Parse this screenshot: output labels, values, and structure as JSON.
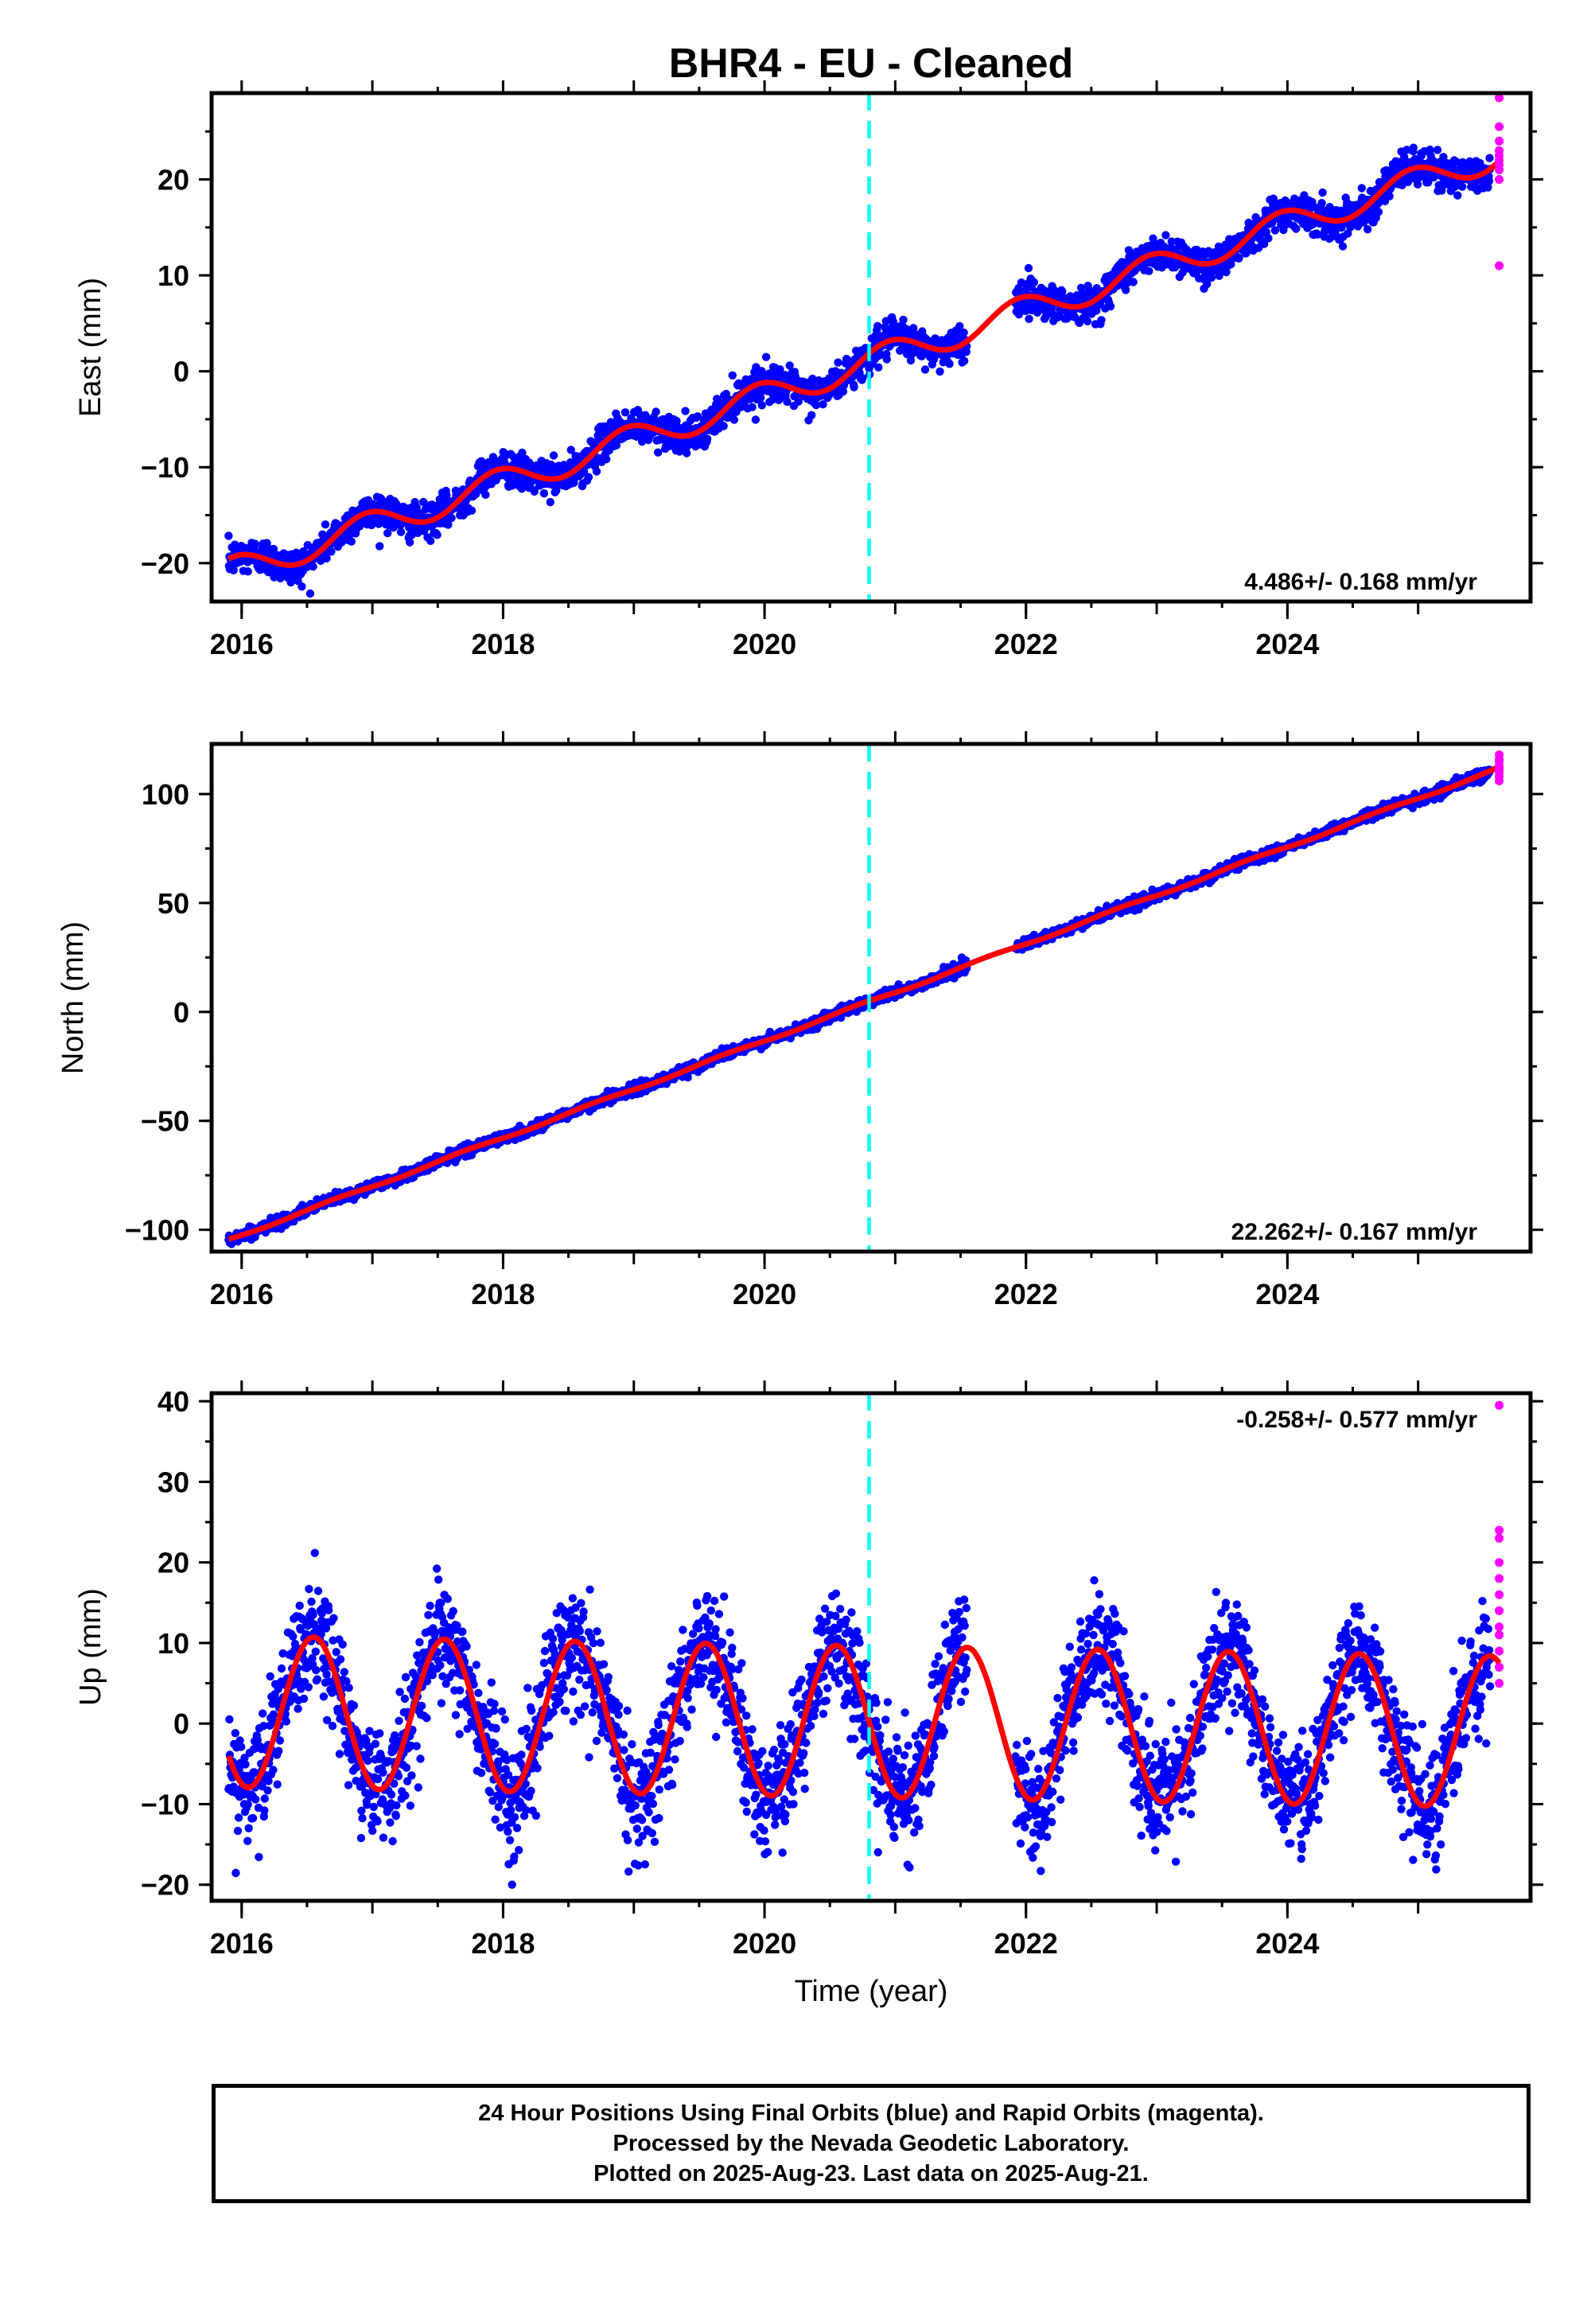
{
  "title": "BHR4  - EU - Cleaned",
  "footer": {
    "line1": "24 Hour Positions Using Final Orbits (blue) and Rapid Orbits (magenta).",
    "line2": "Processed by the Nevada Geodetic Laboratory.",
    "line3": "Plotted on 2025-Aug-23. Last data on 2025-Aug-21."
  },
  "colors": {
    "final_orbits": "#0000ff",
    "rapid_orbits": "#ff00ff",
    "model": "#ff0000",
    "event_line": "#00ffff"
  },
  "chart_data": [
    {
      "type": "scatter",
      "component": "East",
      "ylabel": "East (mm)",
      "xlabel": "",
      "xlim": [
        2015.77,
        2025.86
      ],
      "ylim": [
        -24,
        29
      ],
      "xticks": [
        2016,
        2018,
        2020,
        2022,
        2024
      ],
      "yticks": [
        -20,
        -10,
        0,
        10,
        20
      ],
      "rate_label": "4.486+/- 0.168 mm/yr",
      "rate_position": "bottom-right",
      "data_range": [
        2015.9,
        2025.55
      ],
      "data_gap": [
        2021.55,
        2021.92
      ],
      "event_line_x": 2020.8,
      "model": {
        "offset": -21.0,
        "slope": 4.486,
        "start": 2015.9,
        "annual_amp": 1.5,
        "annual_phase": 0.95
      },
      "points_summary": {
        "start": 2015.9,
        "end": 2025.55,
        "count": 3000,
        "scatter_sd": 0.9,
        "approx_start_value": -21.5,
        "approx_end_value": 23.0
      },
      "rapid_points": {
        "x": 2025.62,
        "values": [
          28.5,
          25.5,
          24,
          23,
          22.5,
          22,
          21.5,
          21,
          20,
          11
        ]
      }
    },
    {
      "type": "scatter",
      "component": "North",
      "ylabel": "North (mm)",
      "xlabel": "",
      "xlim": [
        2015.77,
        2025.86
      ],
      "ylim": [
        -110,
        123
      ],
      "xticks": [
        2016,
        2018,
        2020,
        2022,
        2024
      ],
      "yticks": [
        -100,
        -50,
        0,
        50,
        100
      ],
      "rate_label": "22.262+/- 0.167 mm/yr",
      "rate_position": "bottom-right",
      "data_range": [
        2015.9,
        2025.55
      ],
      "data_gap": [
        2021.55,
        2021.92
      ],
      "event_line_x": 2020.8,
      "model": {
        "offset": -104.5,
        "slope": 22.262,
        "start": 2015.9,
        "annual_amp": 0.6,
        "annual_phase": 0.7
      },
      "points_summary": {
        "start": 2015.9,
        "end": 2025.55,
        "count": 3000,
        "scatter_sd": 1.2,
        "approx_start_value": -104.5,
        "approx_end_value": 110.0
      },
      "rapid_points": {
        "x": 2025.62,
        "values": [
          118,
          116,
          115,
          113,
          112,
          111,
          110,
          108,
          106
        ]
      }
    },
    {
      "type": "scatter",
      "component": "Up",
      "ylabel": "Up (mm)",
      "xlabel": "Time (year)",
      "xlim": [
        2015.77,
        2025.86
      ],
      "ylim": [
        -22,
        41
      ],
      "xticks": [
        2016,
        2018,
        2020,
        2022,
        2024
      ],
      "yticks": [
        -20,
        -10,
        0,
        10,
        20,
        30,
        40
      ],
      "rate_label": "-0.258+/- 0.577 mm/yr",
      "rate_position": "top-right",
      "data_range": [
        2015.9,
        2025.55
      ],
      "data_gap": [
        2021.55,
        2021.92
      ],
      "event_line_x": 2020.8,
      "model": {
        "offset": 1.5,
        "slope": -0.258,
        "start": 2015.9,
        "annual_amp": 9.4,
        "annual_phase": 0.55
      },
      "points_summary": {
        "start": 2015.9,
        "end": 2025.55,
        "count": 3000,
        "scatter_sd": 3.4,
        "approx_start_value": -6.0,
        "approx_end_value": 9.0
      },
      "rapid_points": {
        "x": 2025.62,
        "values": [
          39.5,
          24,
          23,
          20,
          18,
          16,
          14,
          12,
          11,
          9,
          7,
          5
        ]
      }
    }
  ]
}
